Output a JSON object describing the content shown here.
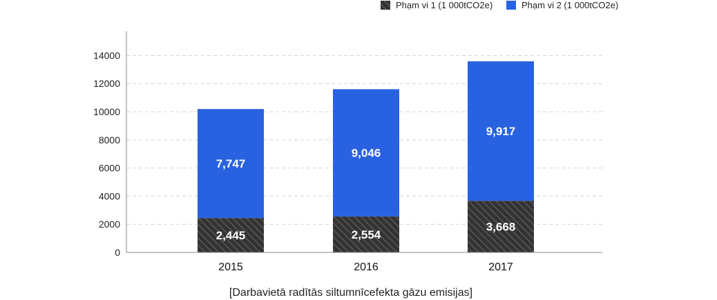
{
  "chart_data": {
    "type": "bar",
    "stacked": true,
    "categories": [
      "2015",
      "2016",
      "2017"
    ],
    "series": [
      {
        "name": "Phạm vi 1 (1 000tCO2e)",
        "values": [
          2445,
          2554,
          3668
        ],
        "labels": [
          "2,445",
          "2,554",
          "3,668"
        ],
        "color": "#333333",
        "pattern": "diagonal-hatch"
      },
      {
        "name": "Phạm vi 2 (1 000tCO2e)",
        "values": [
          7747,
          9046,
          9917
        ],
        "labels": [
          "7,747",
          "9,046",
          "9,917"
        ],
        "color": "#2962e0"
      }
    ],
    "yticks": [
      "0",
      "2000",
      "4000",
      "6000",
      "8000",
      "10000",
      "12000",
      "14000"
    ],
    "ylim": [
      0,
      14000
    ],
    "grid": true,
    "legend_position": "top-right",
    "caption": "[Darbavietā radītās siltumnīcefekta gāzu emisijas]"
  }
}
